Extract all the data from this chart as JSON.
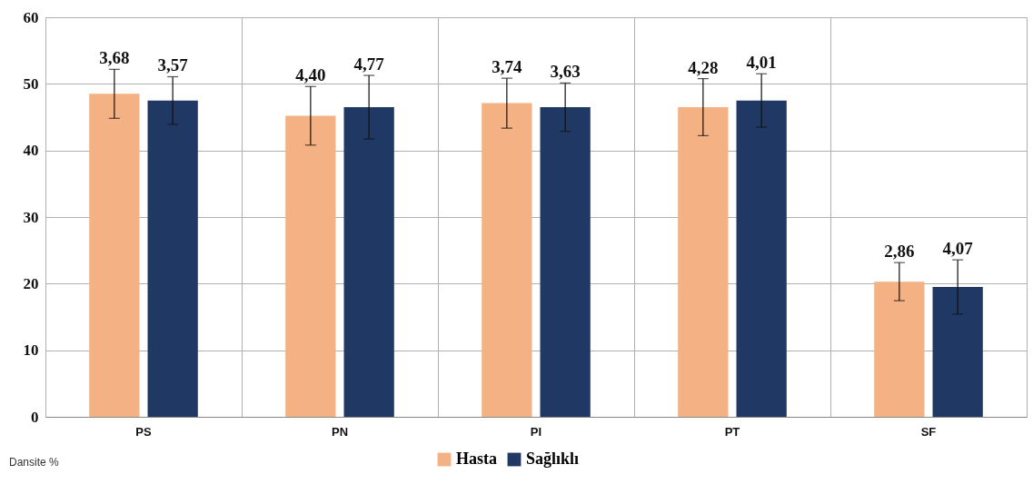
{
  "chart_data": {
    "type": "bar",
    "categories": [
      "PS",
      "PN",
      "PI",
      "PT",
      "SF"
    ],
    "series": [
      {
        "name": "Hasta",
        "color": "#f4b183",
        "values": [
          48.5,
          45.2,
          47.1,
          46.5,
          20.3
        ],
        "errors": [
          3.68,
          4.4,
          3.74,
          4.28,
          2.86
        ]
      },
      {
        "name": "Sağlıklı",
        "color": "#1f3864",
        "values": [
          47.5,
          46.5,
          46.5,
          47.5,
          19.5
        ],
        "errors": [
          3.57,
          4.77,
          3.63,
          4.01,
          4.07
        ]
      }
    ],
    "ylim": [
      0,
      60
    ],
    "yticks": [
      0,
      10,
      20,
      30,
      40,
      50,
      60
    ],
    "grid": true,
    "legend": "bottom",
    "annotations": [
      "3,68",
      "3,57",
      "4,40",
      "4,77",
      "3,74",
      "3,63",
      "4,28",
      "4,01",
      "2,86",
      "4,07",
      "Dansite %"
    ]
  }
}
